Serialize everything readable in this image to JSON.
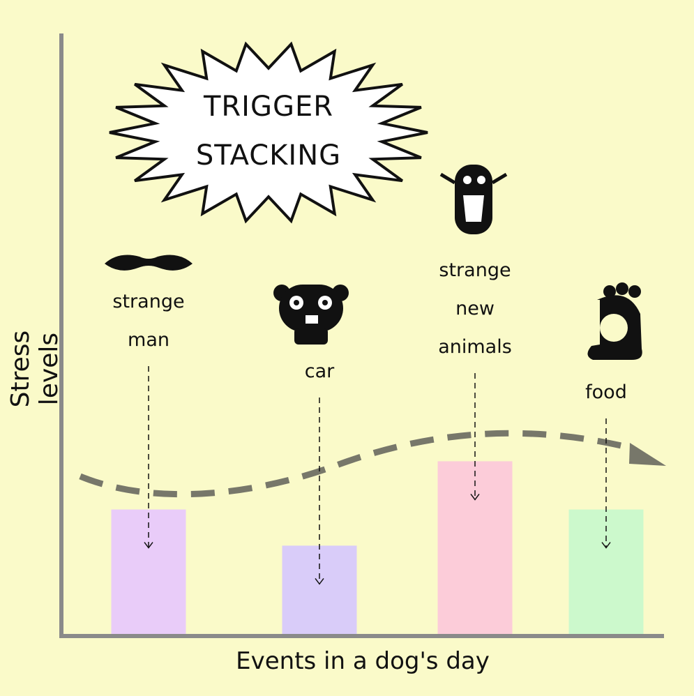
{
  "chart_data": {
    "type": "bar",
    "title": "TRIGGER STACKING",
    "x_label": "Events in a dog's day",
    "y_label": "Stress levels",
    "categories": [
      "strange man",
      "car",
      "strange new animals",
      "food"
    ],
    "values": [
      21,
      15,
      29,
      21
    ],
    "colors": [
      "#e9ccf9",
      "#d9ccf9",
      "#fcccd9",
      "#ccf9cc"
    ],
    "ylim": [
      0,
      100
    ]
  }
}
